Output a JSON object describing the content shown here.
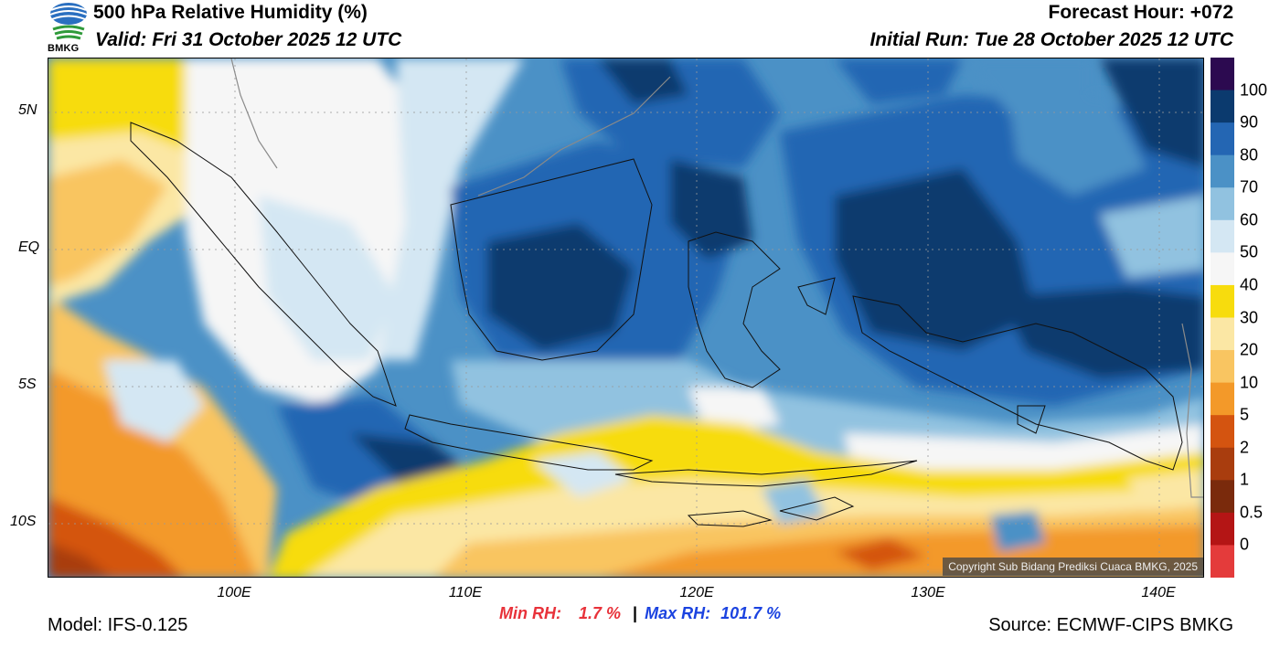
{
  "header": {
    "title": "500 hPa Relative Humidity (%)",
    "valid": "Valid: Fri 31 October 2025 12 UTC",
    "forecast_hour": "Forecast Hour: +072",
    "initial_run": "Initial Run: Tue 28 October 2025 12 UTC",
    "logo_text": "BMKG"
  },
  "axes": {
    "lat_labels": [
      "5N",
      "EQ",
      "5S",
      "10S"
    ],
    "lon_labels": [
      "100E",
      "110E",
      "120E",
      "130E",
      "140E"
    ]
  },
  "colorbar": {
    "labels": [
      "100",
      "90",
      "80",
      "70",
      "60",
      "50",
      "40",
      "30",
      "20",
      "10",
      "5",
      "2",
      "1",
      "0.5",
      "0"
    ],
    "colors": [
      "#2c0a50",
      "#0b3a6e",
      "#2466b3",
      "#4b91c6",
      "#91c2e0",
      "#d4e7f3",
      "#f6f6f6",
      "#f7dc0d",
      "#fbe7a4",
      "#f9c561",
      "#f39929",
      "#d45410",
      "#a93d0e",
      "#7a2a0c",
      "#b41515",
      "#e43b3b"
    ]
  },
  "stats": {
    "min_label": "Min RH:",
    "min_value": "1.7 %",
    "separator": "|",
    "max_label": "Max RH:",
    "max_value": "101.7 %"
  },
  "footer": {
    "model": "Model: IFS-0.125",
    "source": "Source: ECMWF-CIPS BMKG",
    "copyright": "Copyright Sub Bidang Prediksi Cuaca BMKG, 2025"
  }
}
